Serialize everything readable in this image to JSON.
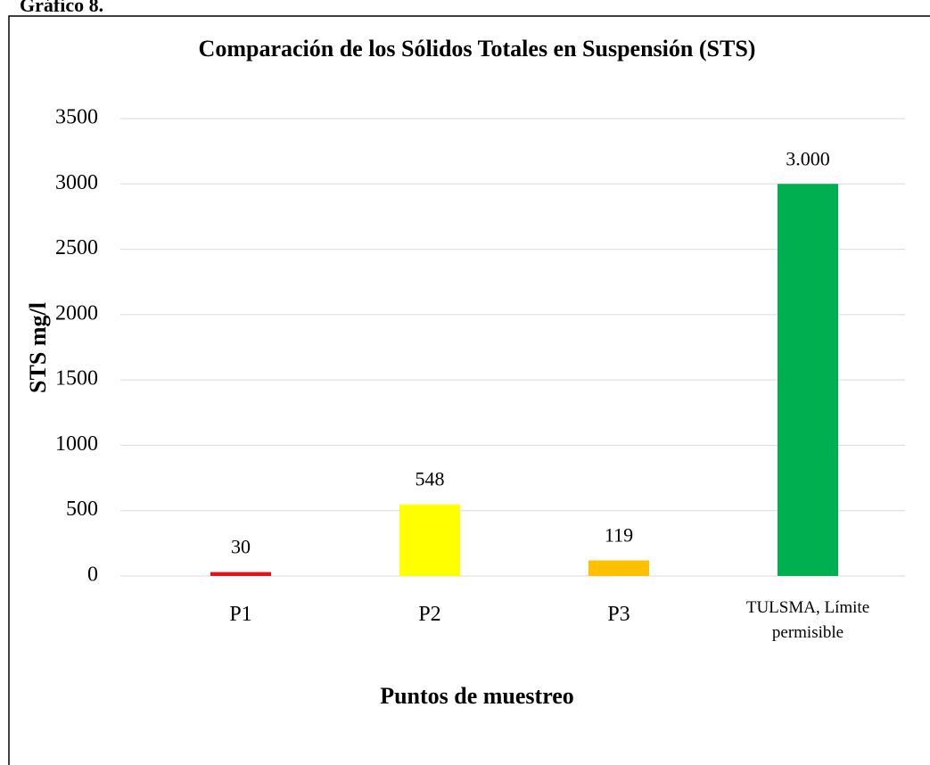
{
  "caption": "Gráfico 8.",
  "chart_data": {
    "type": "bar",
    "title": "Comparación de los Sólidos Totales en Suspensión (STS)",
    "xlabel": "Puntos de muestreo",
    "ylabel": "STS mg/l",
    "categories": [
      "P1",
      "P2",
      "P3",
      "TULSMA, Límite permisible"
    ],
    "values": [
      30,
      548,
      119,
      3000
    ],
    "value_labels": [
      "30",
      "548",
      "119",
      "3.000"
    ],
    "colors": [
      "#e8101a",
      "#ffff00",
      "#ffc000",
      "#00b050"
    ],
    "ylim": [
      0,
      3500
    ],
    "yticks": [
      0,
      500,
      1000,
      1500,
      2000,
      2500,
      3000,
      3500
    ],
    "grid": true
  }
}
